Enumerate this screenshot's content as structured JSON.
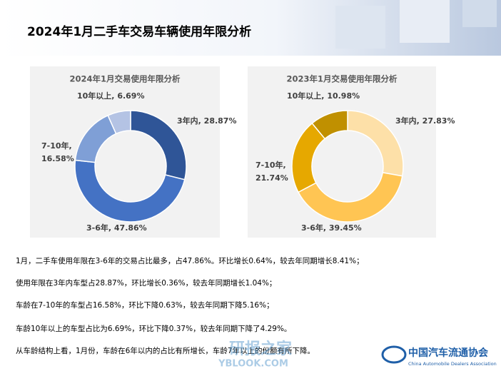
{
  "title": "2024年1月二手车交易车辆使用年限分析",
  "chart_data": [
    {
      "type": "donut",
      "title": "2024年1月交易使用年限分析",
      "values": [
        28.87,
        47.86,
        16.58,
        6.69
      ],
      "value_labels": [
        "3年内, 28.87%",
        "3-6年, 47.86%",
        "7-10年, 16.58%",
        "10年以上, 6.69%"
      ],
      "colors": [
        "#2f5597",
        "#4472c4",
        "#7f9fd6",
        "#b4c3e4"
      ]
    },
    {
      "type": "donut",
      "title": "2023年1月交易使用年限分析",
      "values": [
        27.83,
        39.45,
        21.74,
        10.98
      ],
      "value_labels": [
        "3年内, 27.83%",
        "3-6年, 39.45%",
        "7-10年, 21.74%",
        "10年以上, 10.98%"
      ],
      "colors": [
        "#fde0a8",
        "#ffc553",
        "#e6a800",
        "#c09000"
      ]
    }
  ],
  "paragraphs": [
    "1月，二手车使用年限在3-6年的交易占比最多，占47.86%。环比增长0.64%，较去年同期增长8.41%；",
    "使用年限在3年内车型占28.87%，环比增长0.36%，较去年同期增长1.04%；",
    "车龄在7-10年的车型占16.58%，环比下降0.63%，较去年同期下降5.16%；",
    "车龄10年以上的车型占比为6.69%，环比下降0.37%，较去年同期下降了4.29%。",
    "从车龄结构上看，1月份，车龄在6年以内的占比有所增长，车龄7年以上的份额有所下降。"
  ],
  "logo": {
    "name": "中国汽车流通协会",
    "subtitle": "China Automobile Dealers Association"
  },
  "watermark": {
    "name": "研报之家",
    "site": "YBLOOK.COM"
  }
}
